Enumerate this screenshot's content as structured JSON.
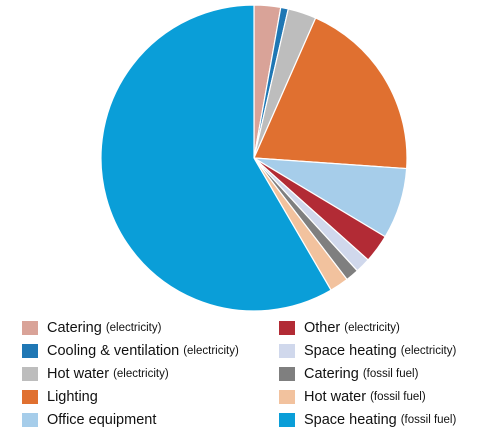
{
  "chart_data": {
    "type": "pie",
    "title": "",
    "start_angle_deg": 0,
    "direction": "clockwise",
    "slices": [
      {
        "label": "Catering",
        "qualifier": "(electricity)",
        "value": 2.8,
        "color": "#d9a398"
      },
      {
        "label": "Cooling & ventilation",
        "qualifier": "(electricity)",
        "value": 0.8,
        "color": "#1f77b4"
      },
      {
        "label": "Hot water",
        "qualifier": "(electricity)",
        "value": 3.0,
        "color": "#bdbdbd"
      },
      {
        "label": "Lighting",
        "qualifier": "",
        "value": 19.5,
        "color": "#e07030"
      },
      {
        "label": "Office equipment",
        "qualifier": "",
        "value": 7.5,
        "color": "#a6cdea"
      },
      {
        "label": "Other",
        "qualifier": "(electricity)",
        "value": 3.0,
        "color": "#b22b35"
      },
      {
        "label": "Space heating",
        "qualifier": "(electricity)",
        "value": 1.6,
        "color": "#d0d8ec"
      },
      {
        "label": "Catering",
        "qualifier": "(fossil fuel)",
        "value": 1.4,
        "color": "#7f7f7f"
      },
      {
        "label": "Hot water",
        "qualifier": "(fossil fuel)",
        "value": 2.0,
        "color": "#f2c29e"
      },
      {
        "label": "Space heating",
        "qualifier": "(fossil fuel)",
        "value": 58.4,
        "color": "#0a9ed8"
      }
    ],
    "legend_placement": "bottom"
  }
}
